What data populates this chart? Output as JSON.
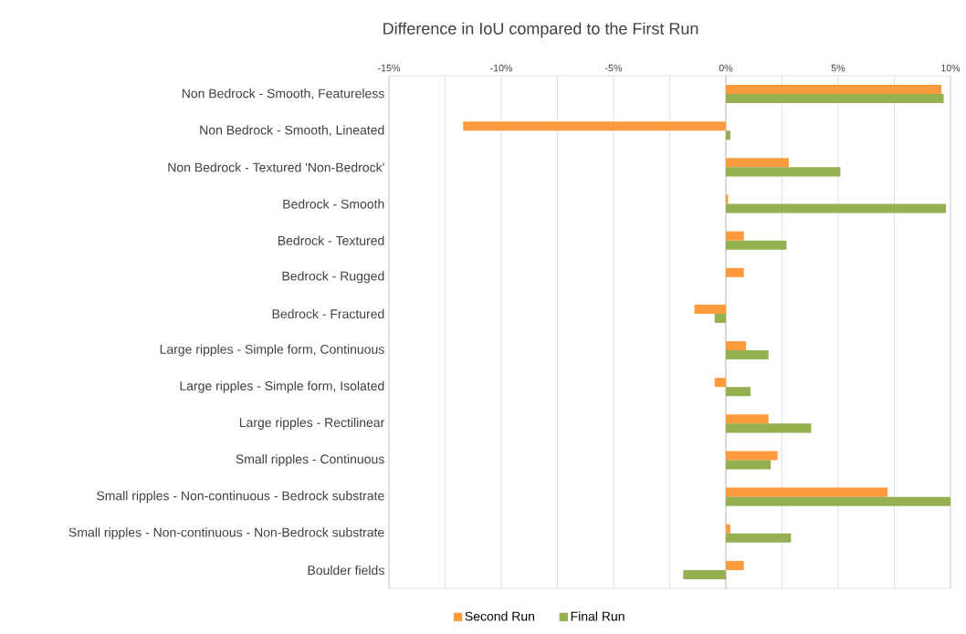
{
  "chart_data": {
    "type": "bar",
    "orientation": "horizontal",
    "title": "Difference in IoU compared to the First Run",
    "categories": [
      "Non Bedrock - Smooth, Featureless",
      "Non Bedrock - Smooth, Lineated",
      "Non Bedrock - Textured 'Non-Bedrock'",
      "Bedrock - Smooth",
      "Bedrock - Textured",
      "Bedrock - Rugged",
      "Bedrock - Fractured",
      "Large ripples - Simple form, Continuous",
      "Large ripples - Simple form, Isolated",
      "Large ripples - Rectilinear",
      "Small ripples - Continuous",
      "Small ripples - Non-continuous - Bedrock substrate",
      "Small ripples - Non-continuous - Non-Bedrock substrate",
      "Boulder fields"
    ],
    "series": [
      {
        "name": "Second Run",
        "color": "#ff9a3f",
        "values": [
          9.6,
          -11.7,
          2.8,
          0.1,
          0.8,
          0.8,
          -1.4,
          0.9,
          -0.5,
          1.9,
          2.3,
          7.2,
          0.2,
          0.8
        ]
      },
      {
        "name": "Final Run",
        "color": "#94b050",
        "values": [
          9.7,
          0.2,
          5.1,
          9.8,
          2.7,
          0,
          -0.5,
          1.9,
          1.1,
          3.8,
          2.0,
          10.0,
          2.9,
          -1.9
        ]
      }
    ],
    "xlim": [
      -15,
      10
    ],
    "xticks": [
      {
        "value": -15,
        "label": "-15%"
      },
      {
        "value": -12.5,
        "label": null
      },
      {
        "value": -10,
        "label": "-10%"
      },
      {
        "value": -7.5,
        "label": null
      },
      {
        "value": -5,
        "label": "-5%"
      },
      {
        "value": -2.5,
        "label": null
      },
      {
        "value": 0,
        "label": "0%"
      },
      {
        "value": 2.5,
        "label": null
      },
      {
        "value": 5,
        "label": "5%"
      },
      {
        "value": 7.5,
        "label": null
      },
      {
        "value": 10,
        "label": "10%"
      }
    ],
    "grid": "x",
    "legend": "bottom"
  }
}
